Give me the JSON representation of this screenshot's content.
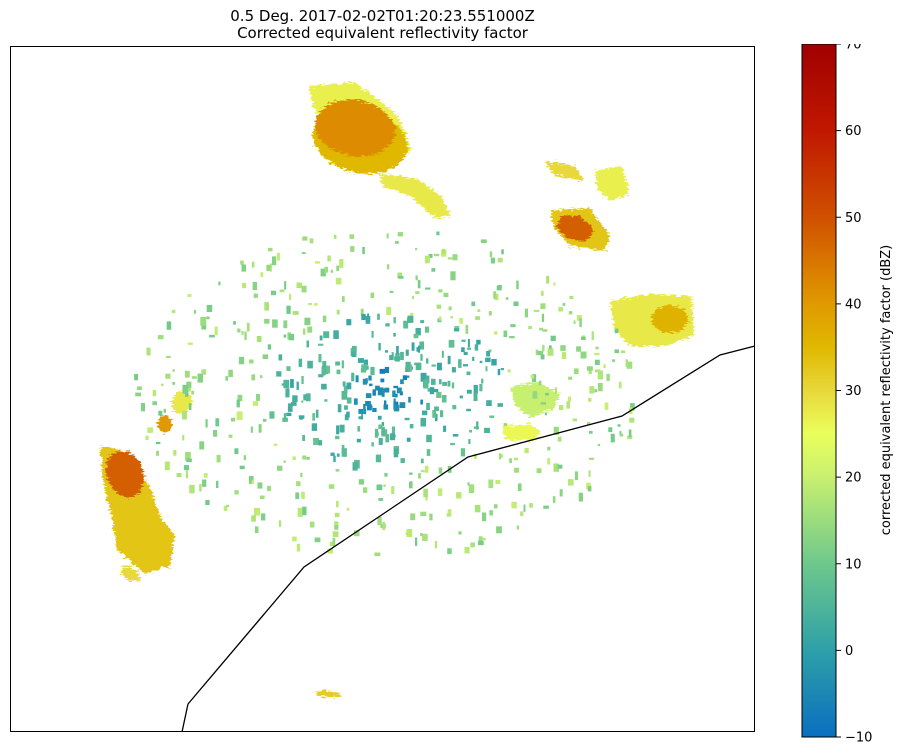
{
  "title_line1": "0.5 Deg. 2017-02-02T01:20:23.551000Z",
  "title_line2": "Corrected equivalent reflectivity factor",
  "chart_data": {
    "type": "heatmap",
    "subtype": "radar PPI reflectivity map with coastline",
    "title": "0.5 Deg. 2017-02-02T01:20:23.551000Z\nCorrected equivalent reflectivity factor",
    "grid": false,
    "axes_ticks_visible": false,
    "colorbar": {
      "label": "corrected equivalent reflectivity factor (dBZ)",
      "orientation": "vertical",
      "placement": "right",
      "range": [
        -10,
        70
      ],
      "ticks": [
        -10,
        0,
        10,
        20,
        30,
        40,
        50,
        60,
        70
      ],
      "tick_labels": [
        "−10",
        "0",
        "10",
        "20",
        "30",
        "40",
        "50",
        "60",
        "70"
      ],
      "colormap_stops": [
        {
          "value": -10,
          "color": "#0a6fc0"
        },
        {
          "value": 0,
          "color": "#2ea0a8"
        },
        {
          "value": 10,
          "color": "#6ec88c"
        },
        {
          "value": 20,
          "color": "#c8f070"
        },
        {
          "value": 25,
          "color": "#eaff5c"
        },
        {
          "value": 30,
          "color": "#e8d83a"
        },
        {
          "value": 35,
          "color": "#e0b800"
        },
        {
          "value": 40,
          "color": "#e09a00"
        },
        {
          "value": 50,
          "color": "#d05000"
        },
        {
          "value": 60,
          "color": "#c01800"
        },
        {
          "value": 70,
          "color": "#a00000"
        }
      ]
    },
    "echo_regions": [
      {
        "name": "north-storm-core",
        "dbz": 42
      },
      {
        "name": "north-storm-edge",
        "dbz": 35
      },
      {
        "name": "north-storm-fringe",
        "dbz": 27
      },
      {
        "name": "band-north-center",
        "dbz": 28
      },
      {
        "name": "ne-cell-a",
        "dbz": 30
      },
      {
        "name": "ne-cell-b",
        "dbz": 27
      },
      {
        "name": "ne-cell-core",
        "dbz": 48
      },
      {
        "name": "ne-cell-c",
        "dbz": 33
      },
      {
        "name": "east-cell",
        "dbz": 28
      },
      {
        "name": "east-cell-core",
        "dbz": 36
      },
      {
        "name": "west-cell-core",
        "dbz": 48
      },
      {
        "name": "west-cell-main",
        "dbz": 33
      },
      {
        "name": "west-cell-south",
        "dbz": 30
      },
      {
        "name": "west-small-cell",
        "dbz": 40
      },
      {
        "name": "west-minor-cell",
        "dbz": 28
      },
      {
        "name": "southeast-patch",
        "dbz": 26
      },
      {
        "name": "east-green-patch",
        "dbz": 20
      },
      {
        "name": "south-small",
        "dbz": 32
      },
      {
        "name": "clutter-ring",
        "dbz": 5
      },
      {
        "name": "near-radar-clutter",
        "dbz": -7
      }
    ]
  }
}
